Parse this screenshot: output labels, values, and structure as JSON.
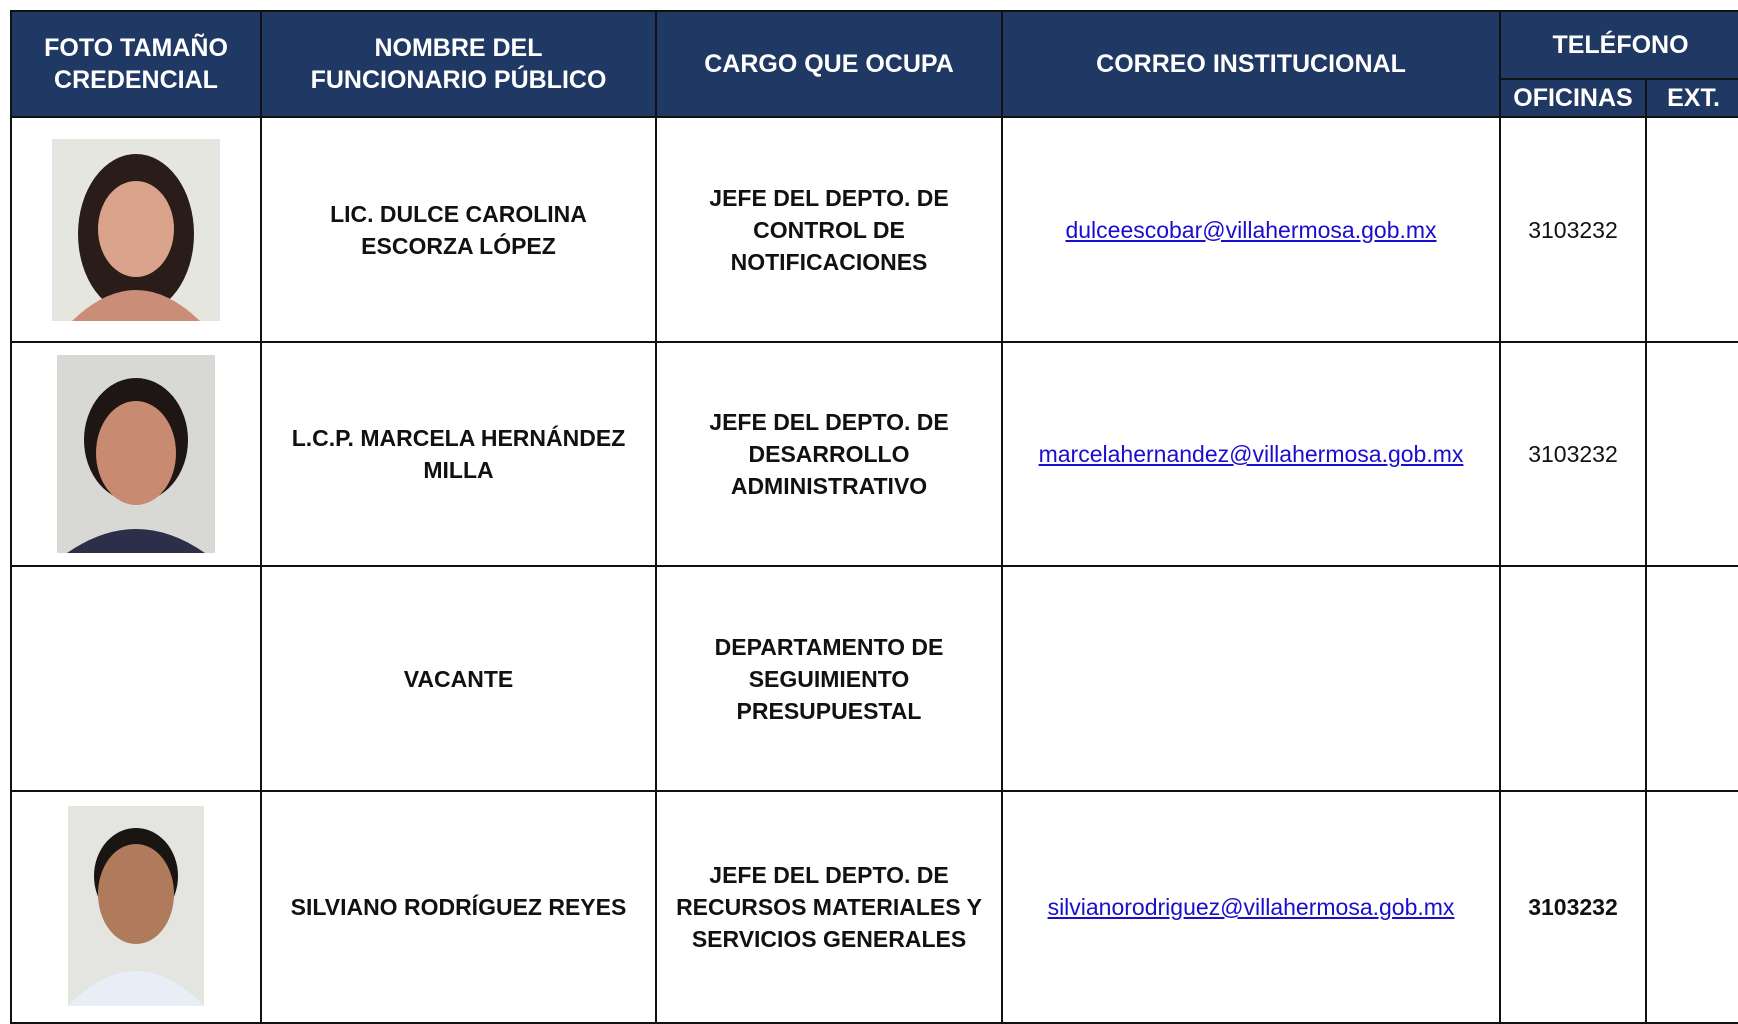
{
  "header": {
    "photo": "FOTO TAMAÑO\nCREDENCIAL",
    "name": "NOMBRE DEL\nFUNCIONARIO PÚBLICO",
    "position": "CARGO QUE OCUPA",
    "email": "CORREO INSTITUCIONAL",
    "phone": "TELÉFONO",
    "offices": "OFICINAS",
    "ext": "EXT."
  },
  "rows": [
    {
      "name": "LIC. DULCE CAROLINA ESCORZA LÓPEZ",
      "position": "JEFE DEL DEPTO. DE CONTROL DE NOTIFICACIONES",
      "email": "dulceescobar@villahermosa.gob.mx",
      "phone": "3103232"
    },
    {
      "name": "L.C.P. MARCELA HERNÁNDEZ MILLA",
      "position": "JEFE DEL DEPTO. DE DESARROLLO ADMINISTRATIVO",
      "email": "marcelahernandez@villahermosa.gob.mx",
      "phone": "3103232"
    },
    {
      "name": "VACANTE",
      "position": "DEPARTAMENTO DE SEGUIMIENTO PRESUPUESTAL"
    },
    {
      "name": "SILVIANO RODRÍGUEZ REYES",
      "position": "JEFE DEL DEPTO. DE RECURSOS MATERIALES Y SERVICIOS GENERALES",
      "email": "silvianorodriguez@villahermosa.gob.mx",
      "phone": "3103232"
    }
  ]
}
